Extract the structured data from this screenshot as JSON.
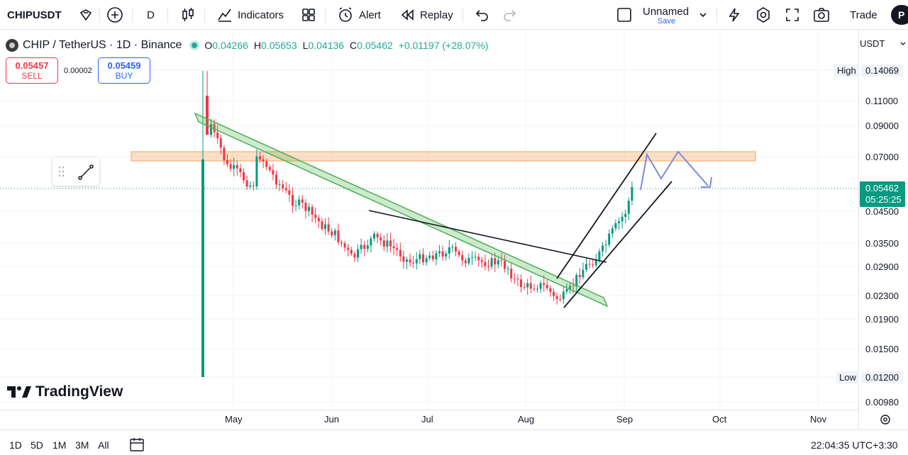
{
  "toolbar": {
    "symbol": "CHIPUSDT",
    "interval": "D",
    "indicators_label": "Indicators",
    "alert_label": "Alert",
    "replay_label": "Replay",
    "layout_name": "Unnamed",
    "save_label": "Save",
    "trade_label": "Trade",
    "avatar_letter": "P"
  },
  "legend": {
    "pair": "CHIP / TetherUS · 1D · Binance",
    "open_key": "O",
    "open": "0.04266",
    "high_key": "H",
    "high": "0.05653",
    "low_key": "L",
    "low": "0.04136",
    "close_key": "C",
    "close": "0.05462",
    "change": "+0.01197 (+28.07%)"
  },
  "trade": {
    "sell_price": "0.05457",
    "sell_label": "SELL",
    "spread": "0.00002",
    "buy_price": "0.05459",
    "buy_label": "BUY"
  },
  "price_scale": {
    "currency": "USDT",
    "high_label": "High",
    "high_value": "0.14069",
    "low_label": "Low",
    "low_value": "0.01200",
    "last_price": "0.05462",
    "countdown": "05:25:25",
    "levels": [
      "0.11000",
      "0.09000",
      "0.07000",
      "0.04500",
      "0.03500",
      "0.02900",
      "0.02300",
      "0.01900",
      "0.01500",
      "0.00980"
    ]
  },
  "time_axis": [
    "May",
    "Jun",
    "Jul",
    "Aug",
    "Sep",
    "Oct",
    "Nov"
  ],
  "bottom": {
    "ranges": [
      "1D",
      "5D",
      "1M",
      "3M",
      "All"
    ],
    "clock": "22:04:35 UTC+3:30"
  },
  "branding": "TradingView",
  "colors": {
    "up": "#089981",
    "down": "#f23645",
    "accent": "#2962ff",
    "zone": "#f7a35c",
    "channel": "#4caf50",
    "projection": "#7b8bd4"
  }
}
